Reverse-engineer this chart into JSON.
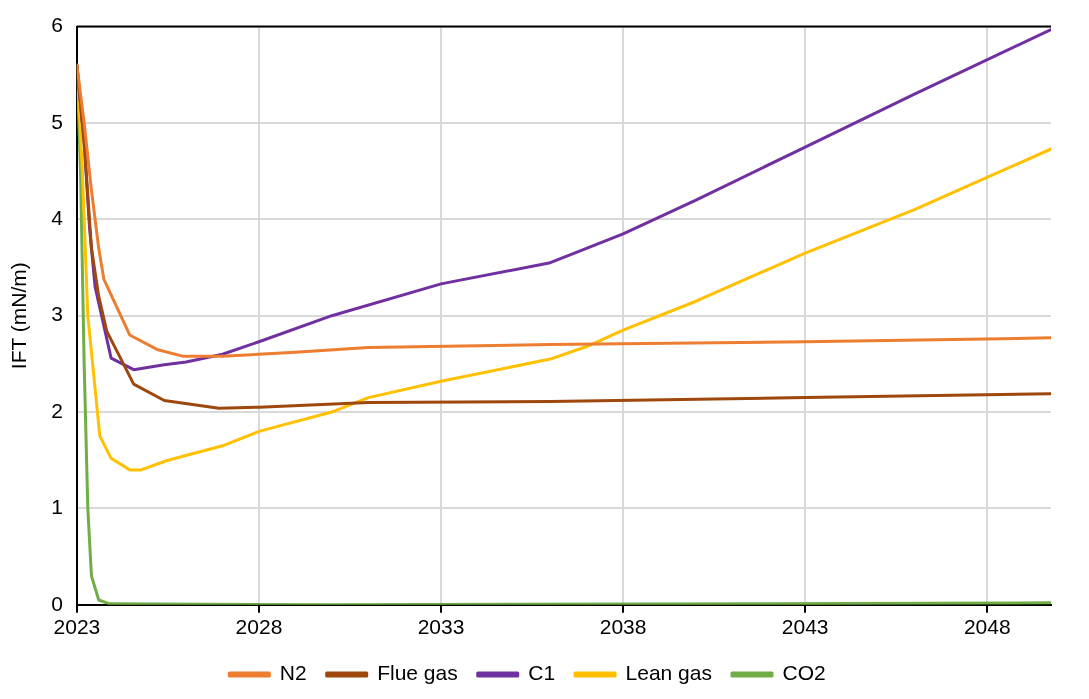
{
  "chart_data": {
    "type": "line",
    "ylabel": "IFT (mN/m)",
    "xlim": [
      2023,
      2049.75
    ],
    "xticks": [
      2023,
      2028,
      2033,
      2038,
      2043,
      2048
    ],
    "ylim": [
      0,
      6
    ],
    "yticks": [
      0,
      1,
      2,
      3,
      4,
      5,
      6
    ],
    "grid": true,
    "legend": "bottom",
    "marker": "none",
    "line_style": "solid",
    "series": [
      {
        "name": "N2",
        "color": "#ed7d31",
        "x": [
          2023,
          2023.2,
          2023.4,
          2023.6,
          2023.74,
          2024.45,
          2025.2,
          2025.9,
          2027,
          2029,
          2031,
          2036,
          2043,
          2049.75
        ],
        "values": [
          5.6,
          5.0,
          4.3,
          3.7,
          3.38,
          2.8,
          2.65,
          2.58,
          2.58,
          2.62,
          2.67,
          2.7,
          2.73,
          2.77
        ]
      },
      {
        "name": "Flue gas",
        "color": "#9e480e",
        "x": [
          2023,
          2023.2,
          2023.4,
          2023.6,
          2023.82,
          2024.56,
          2025.4,
          2026.9,
          2028,
          2031,
          2036,
          2043,
          2049.75
        ],
        "values": [
          5.6,
          4.8,
          3.7,
          3.2,
          2.84,
          2.29,
          2.12,
          2.04,
          2.05,
          2.1,
          2.11,
          2.15,
          2.19
        ]
      },
      {
        "name": "C1",
        "color": "#7030a0",
        "x": [
          2023,
          2023.2,
          2023.35,
          2023.5,
          2023.94,
          2024.56,
          2025.4,
          2026,
          2027,
          2028,
          2030,
          2033,
          2036,
          2038,
          2040,
          2043,
          2046,
          2049.75
        ],
        "values": [
          5.6,
          4.8,
          3.9,
          3.3,
          2.56,
          2.44,
          2.49,
          2.52,
          2.6,
          2.73,
          3.0,
          3.33,
          3.55,
          3.85,
          4.2,
          4.75,
          5.3,
          5.97
        ]
      },
      {
        "name": "Lean gas",
        "color": "#ffc000",
        "x": [
          2023,
          2023.15,
          2023.3,
          2023.63,
          2023.94,
          2024.45,
          2024.76,
          2025.5,
          2027,
          2028,
          2030,
          2031,
          2033,
          2036,
          2037,
          2038,
          2040,
          2043,
          2046,
          2049.75
        ],
        "values": [
          5.6,
          4.5,
          3.0,
          1.75,
          1.52,
          1.4,
          1.4,
          1.5,
          1.65,
          1.8,
          2.0,
          2.15,
          2.32,
          2.55,
          2.68,
          2.85,
          3.15,
          3.65,
          4.1,
          4.73
        ]
      },
      {
        "name": "CO2",
        "color": "#70ad47",
        "x": [
          2023,
          2023.1,
          2023.2,
          2023.3,
          2023.4,
          2023.6,
          2023.9,
          2030,
          2049.75
        ],
        "values": [
          5.6,
          4.5,
          2.5,
          1.0,
          0.3,
          0.05,
          0.01,
          0,
          0.02
        ]
      }
    ]
  }
}
